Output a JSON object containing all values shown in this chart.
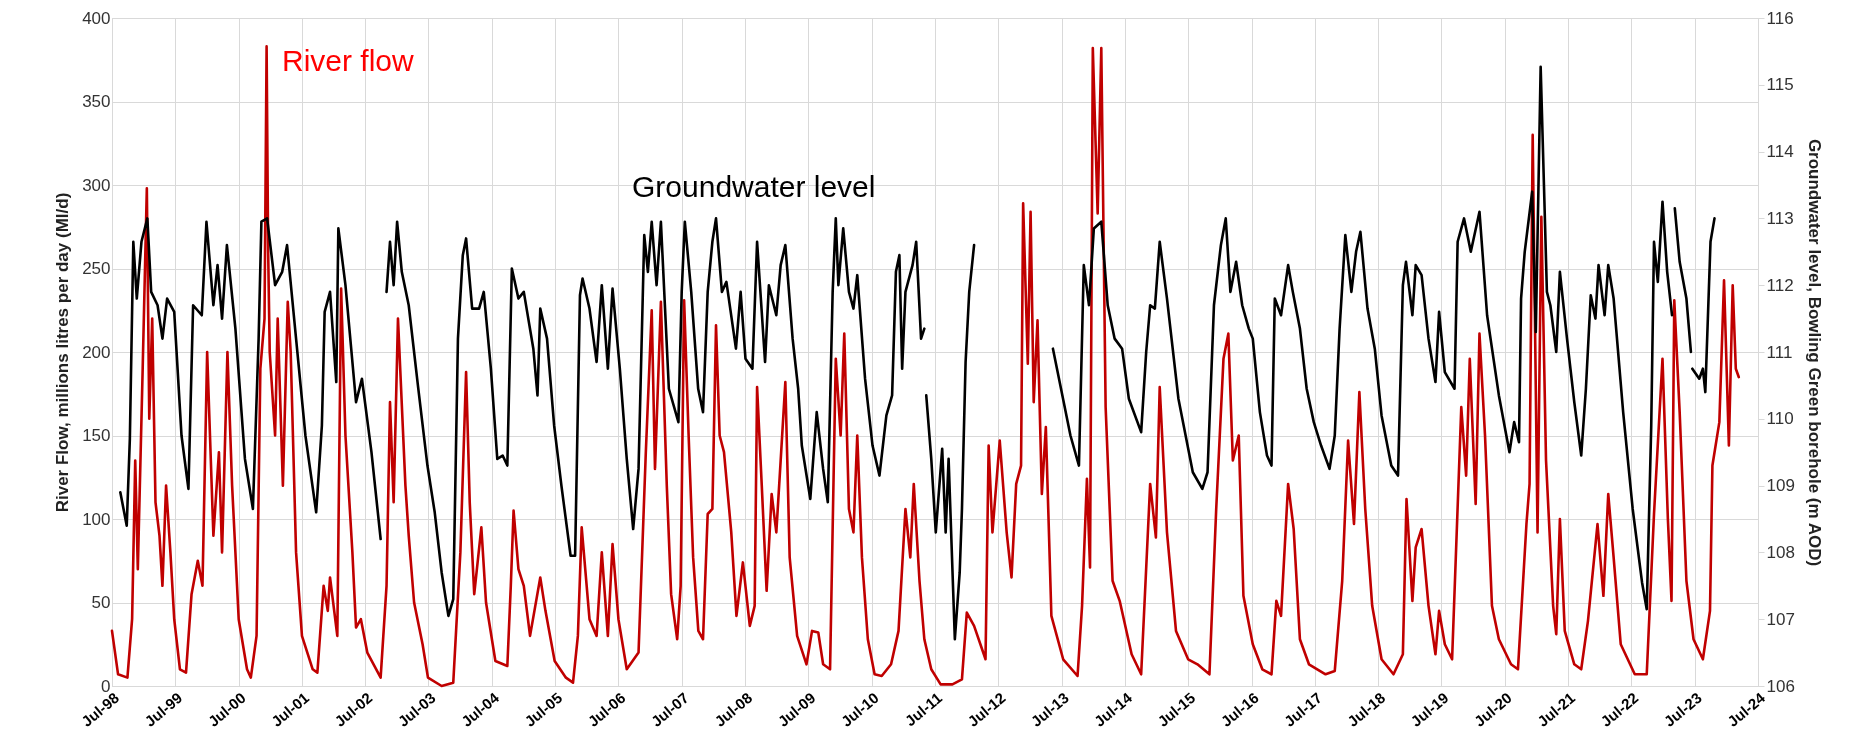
{
  "chart_data": {
    "type": "line",
    "ylabel": "River Flow, millions litres per day (Ml/d)",
    "y2label": "Groundwater level, Bowling Green borehole (m AOD)",
    "xlim": [
      "1998-07",
      "2024-07"
    ],
    "xticks": [
      {
        "value": "1998-07",
        "label": "Jul-98"
      },
      {
        "value": "1999-07",
        "label": "Jul-99"
      },
      {
        "value": "2000-07",
        "label": "Jul-00"
      },
      {
        "value": "2001-07",
        "label": "Jul-01"
      },
      {
        "value": "2002-07",
        "label": "Jul-02"
      },
      {
        "value": "2003-07",
        "label": "Jul-03"
      },
      {
        "value": "2004-07",
        "label": "Jul-04"
      },
      {
        "value": "2005-07",
        "label": "Jul-05"
      },
      {
        "value": "2006-07",
        "label": "Jul-06"
      },
      {
        "value": "2007-07",
        "label": "Jul-07"
      },
      {
        "value": "2008-07",
        "label": "Jul-08"
      },
      {
        "value": "2009-07",
        "label": "Jul-09"
      },
      {
        "value": "2010-07",
        "label": "Jul-10"
      },
      {
        "value": "2011-07",
        "label": "Jul-11"
      },
      {
        "value": "2012-07",
        "label": "Jul-12"
      },
      {
        "value": "2013-07",
        "label": "Jul-13"
      },
      {
        "value": "2014-07",
        "label": "Jul-14"
      },
      {
        "value": "2015-07",
        "label": "Jul-15"
      },
      {
        "value": "2016-07",
        "label": "Jul-16"
      },
      {
        "value": "2017-07",
        "label": "Jul-17"
      },
      {
        "value": "2018-07",
        "label": "Jul-18"
      },
      {
        "value": "2019-07",
        "label": "Jul-19"
      },
      {
        "value": "2020-07",
        "label": "Jul-20"
      },
      {
        "value": "2021-07",
        "label": "Jul-21"
      },
      {
        "value": "2022-07",
        "label": "Jul-22"
      },
      {
        "value": "2023-07",
        "label": "Jul-23"
      },
      {
        "value": "2024-07",
        "label": "Jul-24"
      }
    ],
    "ylim": [
      0,
      400
    ],
    "yticks": [
      0,
      50,
      100,
      150,
      200,
      250,
      300,
      350,
      400
    ],
    "y2lim": [
      106,
      116
    ],
    "y2ticks": [
      106,
      107,
      108,
      109,
      110,
      111,
      112,
      113,
      114,
      115,
      116
    ],
    "grid": true,
    "series": [
      {
        "name": "River flow",
        "color": "#c00000",
        "x": [
          "1998-07-01",
          "1998-08-05",
          "1998-09-28",
          "1998-10-25",
          "1998-11-12",
          "1998-11-27",
          "1998-12-25",
          "1999-01-18",
          "1999-02-01",
          "1999-02-18",
          "1999-03-09",
          "1999-04-01",
          "1999-04-18",
          "1999-05-09",
          "1999-06-03",
          "1999-06-25",
          "1999-07-28",
          "1999-09-01",
          "1999-10-03",
          "1999-11-08",
          "1999-12-05",
          "2000-01-01",
          "2000-02-06",
          "2000-03-09",
          "2000-03-27",
          "2000-04-27",
          "2000-05-24",
          "2000-07-01",
          "2000-08-18",
          "2000-09-09",
          "2000-10-12",
          "2000-11-03",
          "2000-11-27",
          "2000-12-09",
          "2000-12-18",
          "2000-12-27",
          "2001-01-27",
          "2001-02-11",
          "2001-03-13",
          "2001-04-10",
          "2001-04-27",
          "2001-05-28",
          "2001-07-01",
          "2001-09-01",
          "2001-09-28",
          "2001-11-03",
          "2001-11-27",
          "2001-12-10",
          "2002-01-21",
          "2002-02-12",
          "2002-03-09",
          "2002-04-18",
          "2002-05-09",
          "2002-06-06",
          "2002-07-13",
          "2002-09-28",
          "2002-11-01",
          "2002-11-21",
          "2002-12-12",
          "2003-01-06",
          "2003-02-18",
          "2003-03-09",
          "2003-04-09",
          "2003-05-28",
          "2003-06-28",
          "2003-09-15",
          "2003-11-21",
          "2004-01-01",
          "2004-02-03",
          "2004-02-24",
          "2004-03-21",
          "2004-05-01",
          "2004-05-28",
          "2004-07-21",
          "2004-09-28",
          "2004-10-18",
          "2004-11-03",
          "2004-12-01",
          "2005-01-01",
          "2005-02-06",
          "2005-04-06",
          "2005-05-06",
          "2005-06-28",
          "2005-09-01",
          "2005-10-12",
          "2005-11-09",
          "2005-12-01",
          "2006-01-15",
          "2006-02-25",
          "2006-03-27",
          "2006-05-01",
          "2006-05-28",
          "2006-07-01",
          "2006-08-18",
          "2006-10-25",
          "2006-12-06",
          "2007-01-09",
          "2007-01-28",
          "2007-03-03",
          "2007-04-06",
          "2007-05-01",
          "2007-06-05",
          "2007-06-25",
          "2007-07-15",
          "2007-08-10",
          "2007-09-05",
          "2007-10-05",
          "2007-11-01",
          "2007-11-28",
          "2007-12-25",
          "2008-01-15",
          "2008-02-05",
          "2008-03-01",
          "2008-04-12",
          "2008-05-12",
          "2008-06-18",
          "2008-07-28",
          "2008-08-25",
          "2008-09-08",
          "2008-10-05",
          "2008-11-02",
          "2008-12-01",
          "2008-12-28",
          "2009-01-22",
          "2009-02-18",
          "2009-03-15",
          "2009-04-27",
          "2009-06-20",
          "2009-07-22",
          "2009-08-27",
          "2009-09-24",
          "2009-11-03",
          "2009-12-06",
          "2010-01-03",
          "2010-01-24",
          "2010-02-20",
          "2010-03-18",
          "2010-04-09",
          "2010-05-06",
          "2010-06-09",
          "2010-07-18",
          "2010-08-28",
          "2010-10-21",
          "2010-12-03",
          "2011-01-12",
          "2011-02-09",
          "2011-03-01",
          "2011-04-03",
          "2011-05-01",
          "2011-06-10",
          "2011-08-03",
          "2011-10-10",
          "2011-12-04",
          "2012-01-01",
          "2012-02-12",
          "2012-04-18",
          "2012-05-06",
          "2012-05-28",
          "2012-07-09",
          "2012-08-18",
          "2012-09-15",
          "2012-10-12",
          "2012-11-09",
          "2012-11-21",
          "2012-12-18",
          "2013-01-03",
          "2013-01-21",
          "2013-02-12",
          "2013-03-09",
          "2013-04-01",
          "2013-05-03",
          "2013-07-10",
          "2013-10-01",
          "2013-10-27",
          "2013-11-24",
          "2013-12-12",
          "2013-12-28",
          "2014-01-25",
          "2014-02-15",
          "2014-03-12",
          "2014-04-21",
          "2014-06-01",
          "2014-08-09",
          "2014-10-03",
          "2014-11-24",
          "2014-12-27",
          "2015-01-18",
          "2015-03-01",
          "2015-04-22",
          "2015-07-01",
          "2015-08-24",
          "2015-11-01",
          "2015-12-10",
          "2016-01-21",
          "2016-02-18",
          "2016-03-15",
          "2016-04-18",
          "2016-05-15",
          "2016-07-08",
          "2016-09-01",
          "2016-10-24",
          "2016-11-21",
          "2016-12-18",
          "2017-01-28",
          "2017-03-01",
          "2017-04-06",
          "2017-05-28",
          "2017-09-01",
          "2017-10-24",
          "2017-12-06",
          "2018-01-09",
          "2018-02-12",
          "2018-03-15",
          "2018-04-18",
          "2018-05-28",
          "2018-07-21",
          "2018-09-28",
          "2018-11-21",
          "2018-12-12",
          "2019-01-15",
          "2019-02-03",
          "2019-03-09",
          "2019-04-18",
          "2019-05-28",
          "2019-06-18",
          "2019-07-21",
          "2019-09-01",
          "2019-10-24",
          "2019-11-21",
          "2019-12-12",
          "2020-01-15",
          "2020-02-06",
          "2020-03-09",
          "2020-04-18",
          "2020-05-28",
          "2020-08-06",
          "2020-09-15",
          "2020-11-03",
          "2020-11-21",
          "2020-12-09",
          "2021-01-06",
          "2021-01-28",
          "2021-02-24",
          "2021-04-06",
          "2021-04-24",
          "2021-05-15",
          "2021-06-12",
          "2021-08-06",
          "2021-09-15",
          "2021-10-24",
          "2021-12-18",
          "2022-01-21",
          "2022-02-18",
          "2022-03-21",
          "2022-05-01",
          "2022-07-21",
          "2022-09-28",
          "2022-11-09",
          "2022-12-28",
          "2023-01-28",
          "2023-02-18",
          "2023-03-06",
          "2023-04-06",
          "2023-05-15",
          "2023-06-25",
          "2023-08-18",
          "2023-09-28",
          "2023-10-12",
          "2023-11-21",
          "2023-12-18",
          "2024-01-15",
          "2024-02-06",
          "2024-02-24",
          "2024-03-12"
        ],
        "values": [
          33,
          7,
          5,
          40,
          135,
          70,
          190,
          298,
          160,
          220,
          110,
          90,
          60,
          120,
          80,
          40,
          10,
          8,
          55,
          75,
          60,
          200,
          90,
          140,
          80,
          200,
          120,
          40,
          10,
          5,
          30,
          190,
          220,
          383,
          260,
          200,
          150,
          220,
          120,
          230,
          200,
          80,
          30,
          10,
          8,
          60,
          45,
          65,
          30,
          238,
          150,
          80,
          35,
          40,
          20,
          5,
          60,
          170,
          110,
          220,
          120,
          90,
          50,
          25,
          5,
          0,
          2,
          80,
          188,
          110,
          55,
          95,
          50,
          15,
          12,
          60,
          105,
          70,
          60,
          30,
          65,
          45,
          15,
          5,
          2,
          30,
          95,
          40,
          30,
          80,
          30,
          85,
          40,
          10,
          20,
          140,
          225,
          130,
          230,
          120,
          55,
          28,
          60,
          231,
          150,
          77,
          33,
          28,
          103,
          106,
          216,
          150,
          140,
          92,
          42,
          74,
          36,
          48,
          179,
          120,
          57,
          115,
          92,
          135,
          182,
          77,
          30,
          13,
          33,
          32,
          13,
          10,
          196,
          150,
          211,
          106,
          92,
          150,
          77,
          28,
          7,
          6,
          13,
          33,
          106,
          77,
          121,
          63,
          28,
          10,
          1,
          1,
          4,
          44,
          36,
          16,
          144,
          92,
          147,
          92,
          65,
          121,
          132,
          289,
          193,
          284,
          170,
          219,
          115,
          155,
          42,
          16,
          6,
          48,
          124,
          71,
          382,
          283,
          382,
          167,
          63,
          51,
          19,
          7,
          121,
          89,
          179,
          92,
          33,
          16,
          13,
          7,
          106,
          196,
          211,
          135,
          150,
          54,
          25,
          10,
          7,
          51,
          42,
          121,
          94,
          28,
          13,
          7,
          9,
          63,
          147,
          97,
          176,
          106,
          48,
          16,
          7,
          19,
          112,
          51,
          83,
          94,
          48,
          19,
          45,
          25,
          16,
          167,
          126,
          196,
          109,
          211,
          150,
          48,
          28,
          13,
          10,
          97,
          121,
          330,
          92,
          281,
          135,
          48,
          31,
          100,
          33,
          13,
          10,
          39,
          97,
          54,
          115,
          77,
          25,
          7,
          7,
          103,
          196,
          100,
          51,
          231,
          164,
          63,
          28,
          16,
          45,
          132,
          158,
          243,
          144,
          240,
          190,
          185
        ]
      },
      {
        "name": "Groundwater level",
        "color": "#000000",
        "axis": "y2",
        "x": [
          "1998-08-18",
          "1998-09-24",
          "1998-10-12",
          "1998-11-01",
          "1998-11-21",
          "1998-12-18",
          "1999-01-21",
          "1999-02-12",
          "1999-03-21",
          "1999-04-18",
          "1999-05-15",
          "1999-06-25",
          "1999-08-06",
          "1999-09-15",
          "1999-10-12",
          "1999-12-01",
          "1999-12-28",
          "2000-02-06",
          "2000-03-01",
          "2000-03-27",
          "2000-04-24",
          "2000-06-12",
          "2000-08-06",
          "2000-09-21",
          "2000-10-24",
          "2000-11-09",
          "2000-12-12",
          "2001-01-27",
          "2001-03-09",
          "2001-04-06",
          "2001-05-28",
          "2001-07-21",
          "2001-09-21",
          "2001-10-24",
          "2001-11-09",
          "2001-12-10",
          "2002-01-15",
          "2002-01-27",
          "2002-03-09",
          "2002-05-09",
          "2002-06-12",
          "2002-08-06",
          "2002-09-28",
          "2002-10-15",
          "2002-11-01",
          "2002-11-21",
          "2002-12-12",
          "2003-01-01",
          "2003-01-28",
          "2003-03-09",
          "2003-05-01",
          "2003-06-25",
          "2003-08-06",
          "2003-09-15",
          "2003-10-24",
          "2003-11-21",
          "2003-12-18",
          "2004-01-15",
          "2004-02-03",
          "2004-03-09",
          "2004-04-18",
          "2004-05-15",
          "2004-06-25",
          "2004-08-01",
          "2004-09-01",
          "2004-09-28",
          "2004-10-24",
          "2004-12-01",
          "2005-01-01",
          "2005-02-25",
          "2005-03-21",
          "2005-04-06",
          "2005-05-15",
          "2005-06-25",
          "2005-08-06",
          "2005-09-28",
          "2005-10-24",
          "2005-11-21",
          "2005-12-06",
          "2006-01-15",
          "2006-02-25",
          "2006-03-27",
          "2006-05-01",
          "2006-05-28",
          "2006-07-09",
          "2006-08-18",
          "2006-09-24",
          "2006-10-25",
          "2006-11-27",
          "2006-12-18",
          "2007-01-09",
          "2007-02-06",
          "2007-03-03",
          "2007-04-18",
          "2007-06-12",
          "2007-07-01",
          "2007-07-19",
          "2007-08-25",
          "2007-10-04",
          "2007-11-01",
          "2007-11-28",
          "2007-12-25",
          "2008-01-15",
          "2008-02-18",
          "2008-03-15",
          "2008-05-09",
          "2008-06-05",
          "2008-07-03",
          "2008-08-12",
          "2008-09-08",
          "2008-10-24",
          "2008-11-15",
          "2008-12-28",
          "2009-01-22",
          "2009-02-18",
          "2009-04-01",
          "2009-05-03",
          "2009-05-24",
          "2009-07-12",
          "2009-08-18",
          "2009-09-24",
          "2009-10-21",
          "2009-11-18",
          "2009-12-06",
          "2009-12-21",
          "2010-01-18",
          "2010-02-20",
          "2010-03-18",
          "2010-04-09",
          "2010-05-24",
          "2010-07-06",
          "2010-08-15",
          "2010-09-24",
          "2010-10-27",
          "2010-11-18",
          "2010-12-08",
          "2010-12-24",
          "2011-01-12",
          "2011-02-22",
          "2011-03-15",
          "2011-04-12",
          "2011-05-01",
          "2011-05-08",
          "2011-05-12",
          "2011-06-10",
          "2011-07-06",
          "2011-08-12",
          "2011-09-01",
          "2011-09-18",
          "2011-10-24",
          "2011-11-21",
          "2011-12-04",
          "2011-12-25",
          "2012-01-15",
          "2012-02-12",
          "2012-06-01",
          "2013-05-12",
          "2013-08-21",
          "2013-10-09",
          "2013-11-06",
          "2013-12-06",
          "2014-01-03",
          "2014-02-15",
          "2014-03-24",
          "2014-05-03",
          "2014-06-15",
          "2014-07-24",
          "2014-10-03",
          "2014-11-01",
          "2014-11-24",
          "2014-12-21",
          "2015-01-18",
          "2015-03-01",
          "2015-05-06",
          "2015-07-28",
          "2015-09-21",
          "2015-10-21",
          "2015-11-27",
          "2016-01-06",
          "2016-02-03",
          "2016-03-01",
          "2016-04-03",
          "2016-05-08",
          "2016-06-15",
          "2016-07-08",
          "2016-08-18",
          "2016-09-28",
          "2016-10-24",
          "2016-11-12",
          "2016-12-18",
          "2017-01-28",
          "2017-02-24",
          "2017-04-06",
          "2017-05-15",
          "2017-06-25",
          "2017-08-06",
          "2017-09-24",
          "2017-10-24",
          "2017-11-21",
          "2017-12-24",
          "2018-01-28",
          "2018-02-24",
          "2018-03-21",
          "2018-05-01",
          "2018-06-12",
          "2018-07-21",
          "2018-09-15",
          "2018-10-24",
          "2018-11-21",
          "2018-12-09",
          "2019-01-15",
          "2019-02-03",
          "2019-03-09",
          "2019-04-18",
          "2019-05-28",
          "2019-06-18",
          "2019-07-21",
          "2019-09-15",
          "2019-10-03",
          "2019-11-09",
          "2019-12-18",
          "2020-02-06",
          "2020-03-21",
          "2020-05-28",
          "2020-07-28",
          "2020-08-24",
          "2020-09-21",
          "2020-10-03",
          "2020-10-24",
          "2020-12-06",
          "2020-12-27",
          "2021-01-24",
          "2021-02-12",
          "2021-03-01",
          "2021-03-21",
          "2021-04-24",
          "2021-05-15",
          "2021-06-25",
          "2021-08-06",
          "2021-09-15",
          "2021-10-12",
          "2021-11-09",
          "2021-12-06",
          "2021-12-24",
          "2022-01-28",
          "2022-02-18",
          "2022-03-21",
          "2022-05-15",
          "2022-07-09",
          "2022-09-01",
          "2022-09-28",
          "2022-10-24",
          "2022-11-09",
          "2022-12-01",
          "2022-12-28",
          "2023-01-24",
          "2023-02-21",
          "2023-03-01",
          "2023-03-09",
          "2023-04-06",
          "2023-05-15",
          "2023-06-10",
          "2023-06-15",
          "2023-06-18",
          "2023-07-28",
          "2023-08-18",
          "2023-09-01",
          "2023-10-01",
          "2023-10-24"
        ],
        "values": [
          108.9,
          108.4,
          109.7,
          112.65,
          111.8,
          112.65,
          113.0,
          111.9,
          111.7,
          111.2,
          111.8,
          111.6,
          109.75,
          108.95,
          111.7,
          111.55,
          112.95,
          111.7,
          112.3,
          111.5,
          112.6,
          111.35,
          109.4,
          108.65,
          111.2,
          112.95,
          113.0,
          112.0,
          112.2,
          112.6,
          111.2,
          109.75,
          108.6,
          109.9,
          111.6,
          111.9,
          110.55,
          112.85,
          112.0,
          110.25,
          110.6,
          109.5,
          108.2,
          null,
          111.9,
          112.65,
          112.0,
          112.95,
          112.2,
          111.7,
          110.5,
          109.3,
          108.6,
          107.7,
          107.05,
          107.3,
          111.2,
          112.45,
          112.7,
          111.65,
          111.65,
          111.9,
          110.75,
          109.4,
          109.45,
          109.3,
          112.25,
          111.8,
          111.9,
          111.05,
          110.35,
          111.65,
          111.2,
          109.9,
          109.0,
          107.95,
          107.95,
          111.85,
          112.1,
          111.65,
          110.85,
          112.0,
          110.75,
          111.95,
          110.75,
          109.4,
          108.35,
          109.25,
          112.75,
          112.2,
          112.95,
          112.0,
          112.95,
          110.45,
          109.95,
          111.9,
          112.95,
          111.9,
          110.45,
          110.1,
          111.9,
          112.65,
          113.0,
          111.9,
          112.05,
          111.05,
          111.9,
          110.9,
          110.75,
          112.65,
          110.85,
          112.0,
          111.55,
          112.3,
          112.6,
          111.2,
          110.45,
          109.6,
          108.8,
          110.1,
          109.25,
          108.75,
          111.9,
          113.0,
          112.0,
          112.85,
          111.9,
          111.65,
          112.15,
          110.6,
          109.6,
          109.15,
          110.05,
          110.35,
          112.2,
          112.45,
          110.75,
          111.9,
          112.3,
          112.65,
          111.2,
          111.35,
          null,
          110.35,
          109.4,
          108.3,
          109.55,
          108.3,
          109.4,
          106.7,
          107.7,
          108.65,
          110.85,
          111.9,
          112.6,
          null,
          111.05,
          109.75,
          109.3,
          112.3,
          111.7,
          112.85,
          112.95,
          111.7,
          111.2,
          111.05,
          110.3,
          109.8,
          111.0,
          111.7,
          111.65,
          112.65,
          111.8,
          110.3,
          109.2,
          108.95,
          109.2,
          111.7,
          112.6,
          113.0,
          111.9,
          112.35,
          111.7,
          111.35,
          111.2,
          110.1,
          109.45,
          109.3,
          111.8,
          111.55,
          112.3,
          111.9,
          111.35,
          110.45,
          109.95,
          109.6,
          109.25,
          109.75,
          111.35,
          112.75,
          111.9,
          112.5,
          112.8,
          111.65,
          111.05,
          110.05,
          109.3,
          109.15,
          112.0,
          112.35,
          111.55,
          112.3,
          112.15,
          111.2,
          110.55,
          111.6,
          110.7,
          110.45,
          112.65,
          113.0,
          112.5,
          113.1,
          111.55,
          110.35,
          109.5,
          109.95,
          109.65,
          111.8,
          112.5,
          113.4,
          111.3,
          115.27,
          113.5,
          111.9,
          111.7,
          111.0,
          112.2,
          111.2,
          110.25,
          109.45,
          110.45,
          111.85,
          111.5,
          112.3,
          111.55,
          112.3,
          111.8,
          110.1,
          108.65,
          107.55,
          107.15,
          109.9,
          112.65,
          112.05,
          113.25,
          112.2,
          111.55,
          null,
          113.15,
          112.35,
          111.8,
          111.0,
          null,
          110.75,
          110.6,
          110.75,
          110.4,
          112.65,
          113.0
        ]
      }
    ]
  }
}
